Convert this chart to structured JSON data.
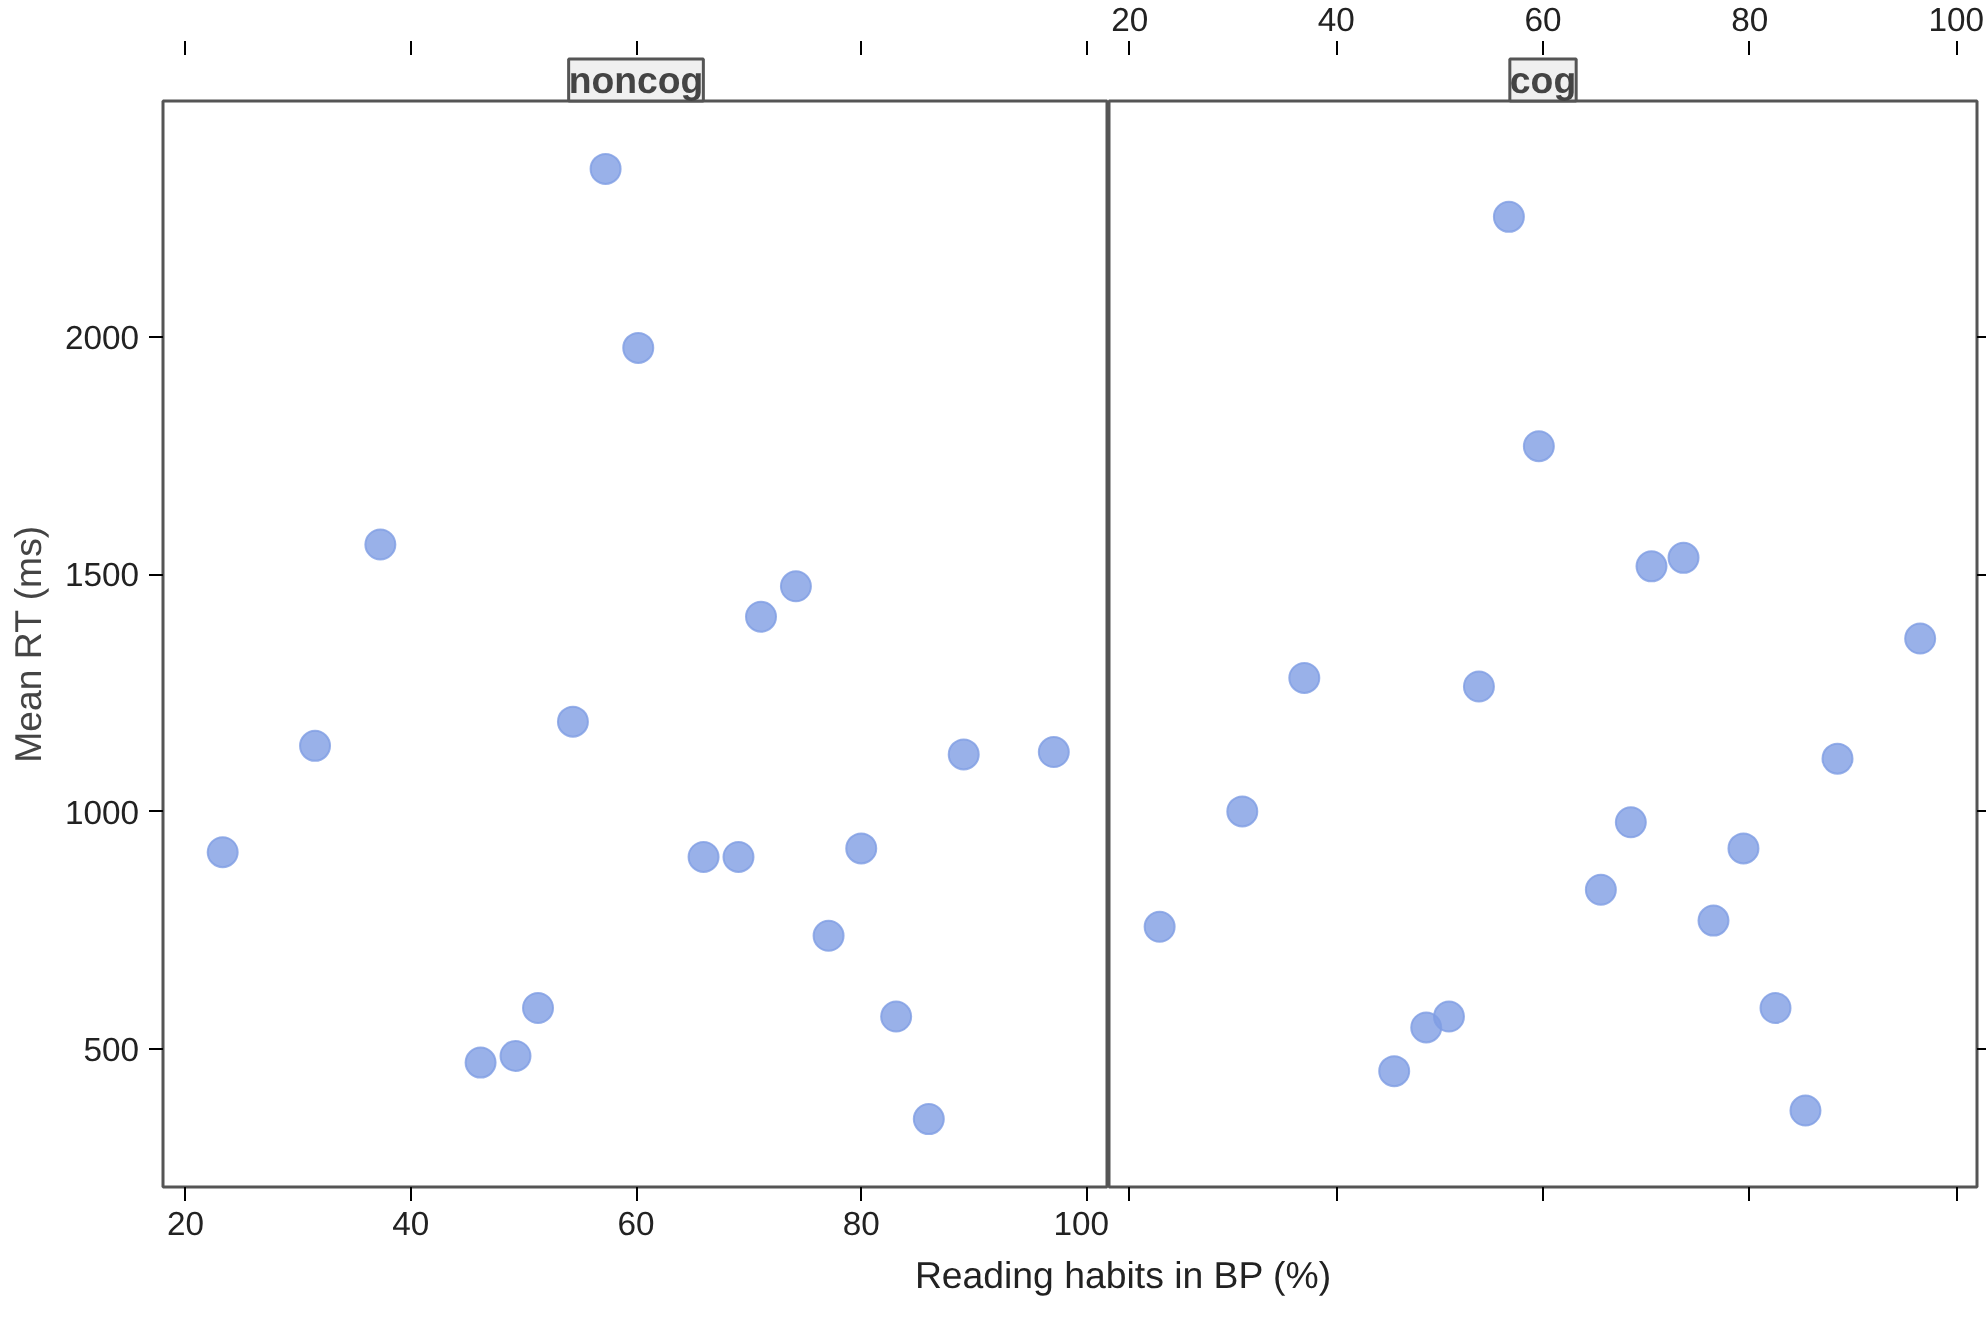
{
  "chart_data": [
    {
      "type": "scatter",
      "title": "noncog",
      "xlabel": "Reading habits in BP (%)",
      "ylabel": "Mean RT (ms)",
      "marker": "circle",
      "grid": false,
      "x": [
        23.3,
        31.5,
        37.3,
        46.2,
        49.3,
        51.3,
        54.4,
        57.3,
        60.2,
        66.0,
        69.1,
        71.1,
        74.2,
        77.1,
        80.0,
        83.1,
        86.0,
        89.1,
        97.1
      ],
      "series": [
        {
          "color": "#7f9de3",
          "values": [
            915,
            1139,
            1563,
            472,
            486,
            587,
            1190,
            2354,
            1977,
            905,
            905,
            1411,
            1475,
            739,
            923,
            569,
            353,
            1121,
            1126
          ]
        }
      ],
      "xlim": [
        18,
        102
      ],
      "xticks": [
        20,
        40,
        60,
        80,
        100
      ],
      "ylim": [
        210,
        2497
      ],
      "yticks": [
        500,
        1000,
        1500,
        2000
      ]
    },
    {
      "type": "scatter",
      "title": "cog",
      "marker": "circle",
      "grid": false,
      "tick_labels": "x",
      "x": [
        22.9,
        30.9,
        36.9,
        45.6,
        48.7,
        50.9,
        53.8,
        56.7,
        59.6,
        65.6,
        68.5,
        70.5,
        73.6,
        76.5,
        79.4,
        82.5,
        85.4,
        88.5,
        96.5
      ],
      "series": [
        {
          "color": "#7f9de3",
          "values": [
            758,
            1001,
            1282,
            454,
            546,
            569,
            1264,
            2253,
            1770,
            836,
            978,
            1517,
            1535,
            771,
            923,
            587,
            371,
            1112,
            1365
          ]
        }
      ],
      "xlim": [
        18,
        102
      ],
      "xticks": [
        20,
        40,
        60,
        80,
        100
      ],
      "ylim": [
        210,
        2497
      ],
      "yticks": [
        500,
        1000,
        1500,
        2000
      ]
    }
  ]
}
